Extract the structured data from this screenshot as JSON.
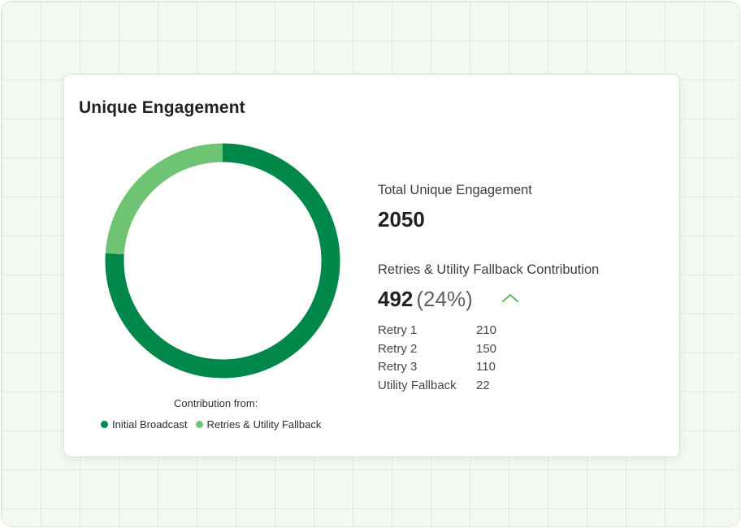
{
  "card": {
    "title": "Unique Engagement"
  },
  "chart_data": {
    "type": "pie",
    "variant": "donut",
    "series": [
      {
        "name": "Initial Broadcast",
        "value": 1558,
        "color": "#00874a"
      },
      {
        "name": "Retries & Utility Fallback",
        "value": 492,
        "color": "#6ec472"
      }
    ]
  },
  "legend": {
    "caption": "Contribution from:",
    "items": [
      {
        "label": "Initial Broadcast",
        "color": "#00874a"
      },
      {
        "label": "Retries & Utility Fallback",
        "color": "#6ec472"
      }
    ]
  },
  "total": {
    "label": "Total Unique Engagement",
    "value": "2050"
  },
  "contribution": {
    "label": "Retries & Utility Fallback Contribution",
    "value": "492",
    "percent": "(24%)",
    "trend_icon": "chevron-up-icon",
    "trend_color": "#4caf50"
  },
  "breakdown": [
    {
      "label": "Retry 1",
      "value": "210"
    },
    {
      "label": "Retry 2",
      "value": "150"
    },
    {
      "label": "Retry 3",
      "value": "110"
    },
    {
      "label": "Utility Fallback",
      "value": "22"
    }
  ]
}
